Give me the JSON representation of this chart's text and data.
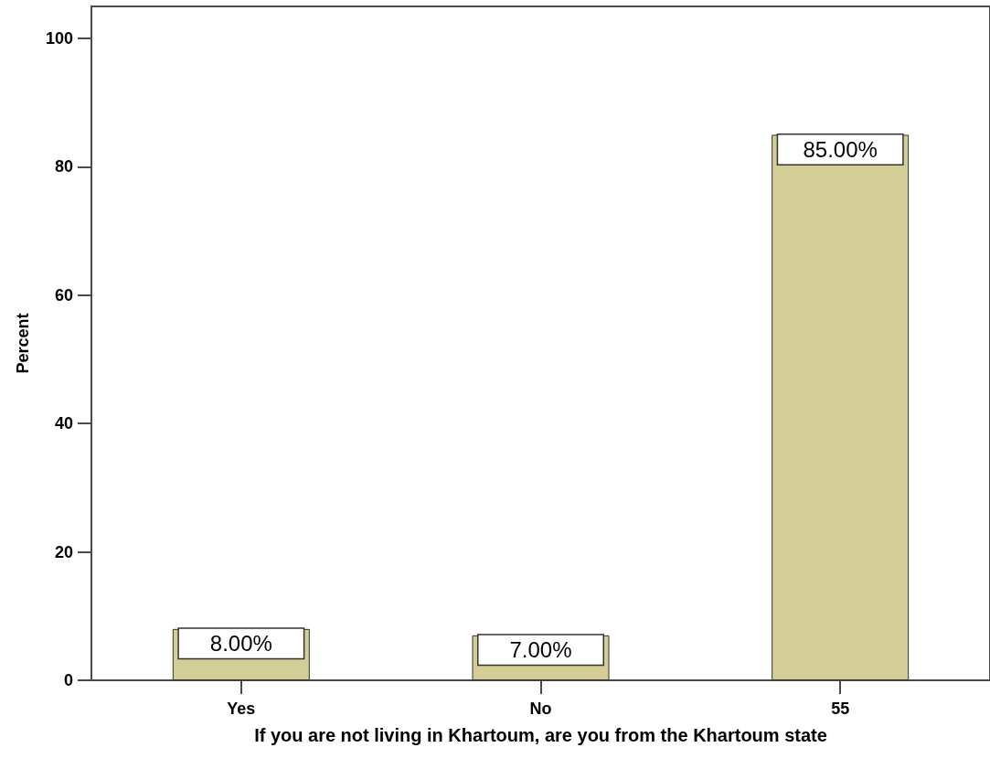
{
  "chart_data": {
    "type": "bar",
    "xlabel": "If you are not living in Khartoum, are you from the Khartoum state",
    "ylabel": "Percent",
    "categories": [
      "Yes",
      "No",
      "55"
    ],
    "values": [
      8,
      7,
      85
    ],
    "color": "#d3ce96",
    "value_labels": [
      "8.00%",
      "7.00%",
      "85.00%"
    ],
    "ylim": [
      0,
      105
    ],
    "yticks": [
      0,
      20,
      40,
      60,
      80,
      100
    ]
  }
}
